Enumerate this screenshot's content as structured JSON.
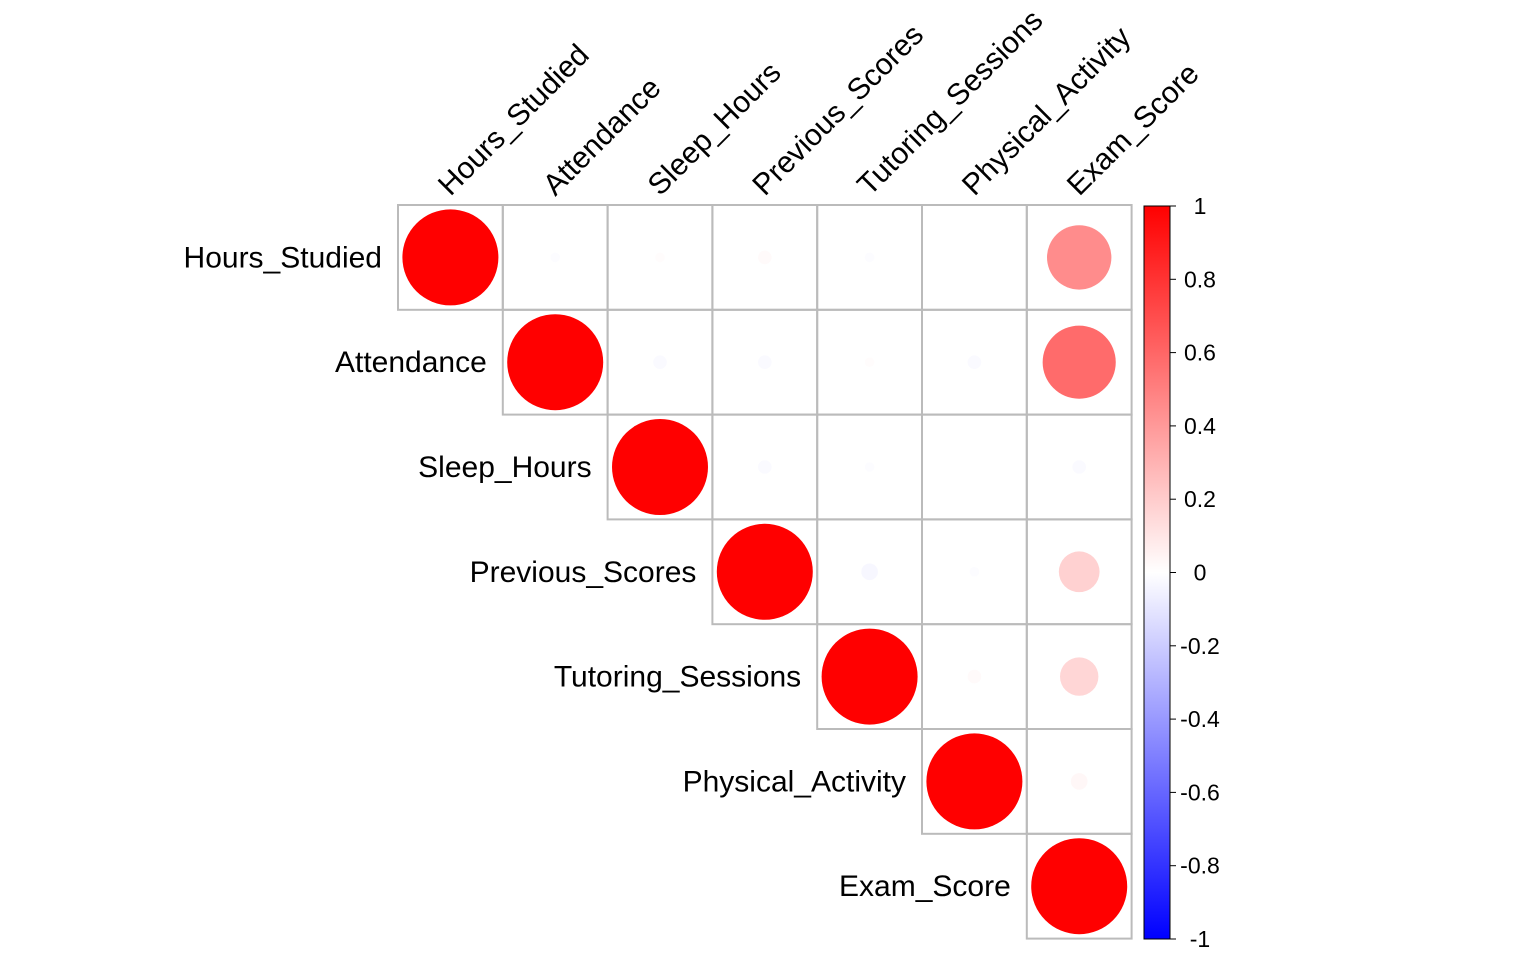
{
  "chart_data": {
    "type": "heatmap",
    "title": "",
    "style": "upper-triangle correlation plot with circles (size and color by correlation)",
    "variables": [
      "Hours_Studied",
      "Attendance",
      "Sleep_Hours",
      "Previous_Scores",
      "Tutoring_Sessions",
      "Physical_Activity",
      "Exam_Score"
    ],
    "matrix": [
      [
        1.0,
        -0.01,
        0.01,
        0.02,
        -0.01,
        0.0,
        0.45
      ],
      [
        -0.01,
        1.0,
        -0.02,
        -0.02,
        0.01,
        -0.02,
        0.58
      ],
      [
        0.01,
        -0.02,
        1.0,
        -0.02,
        -0.01,
        -0.0,
        -0.02
      ],
      [
        0.02,
        -0.02,
        -0.02,
        1.0,
        -0.03,
        -0.01,
        0.18
      ],
      [
        -0.01,
        0.01,
        -0.01,
        -0.03,
        1.0,
        0.02,
        0.16
      ],
      [
        0.0,
        -0.02,
        -0.0,
        -0.01,
        0.02,
        1.0,
        0.03
      ],
      [
        0.45,
        0.58,
        -0.02,
        0.18,
        0.16,
        0.03,
        1.0
      ]
    ],
    "colorbar": {
      "ticks": [
        "1",
        "0.8",
        "0.6",
        "0.4",
        "0.2",
        "0",
        "-0.2",
        "-0.4",
        "-0.6",
        "-0.8",
        "-1"
      ],
      "range": [
        -1,
        1
      ],
      "colors": {
        "negative": "#0000ff",
        "zero": "#ffffff",
        "positive": "#ff0000"
      }
    },
    "grid_color": "#bbbbbb"
  }
}
